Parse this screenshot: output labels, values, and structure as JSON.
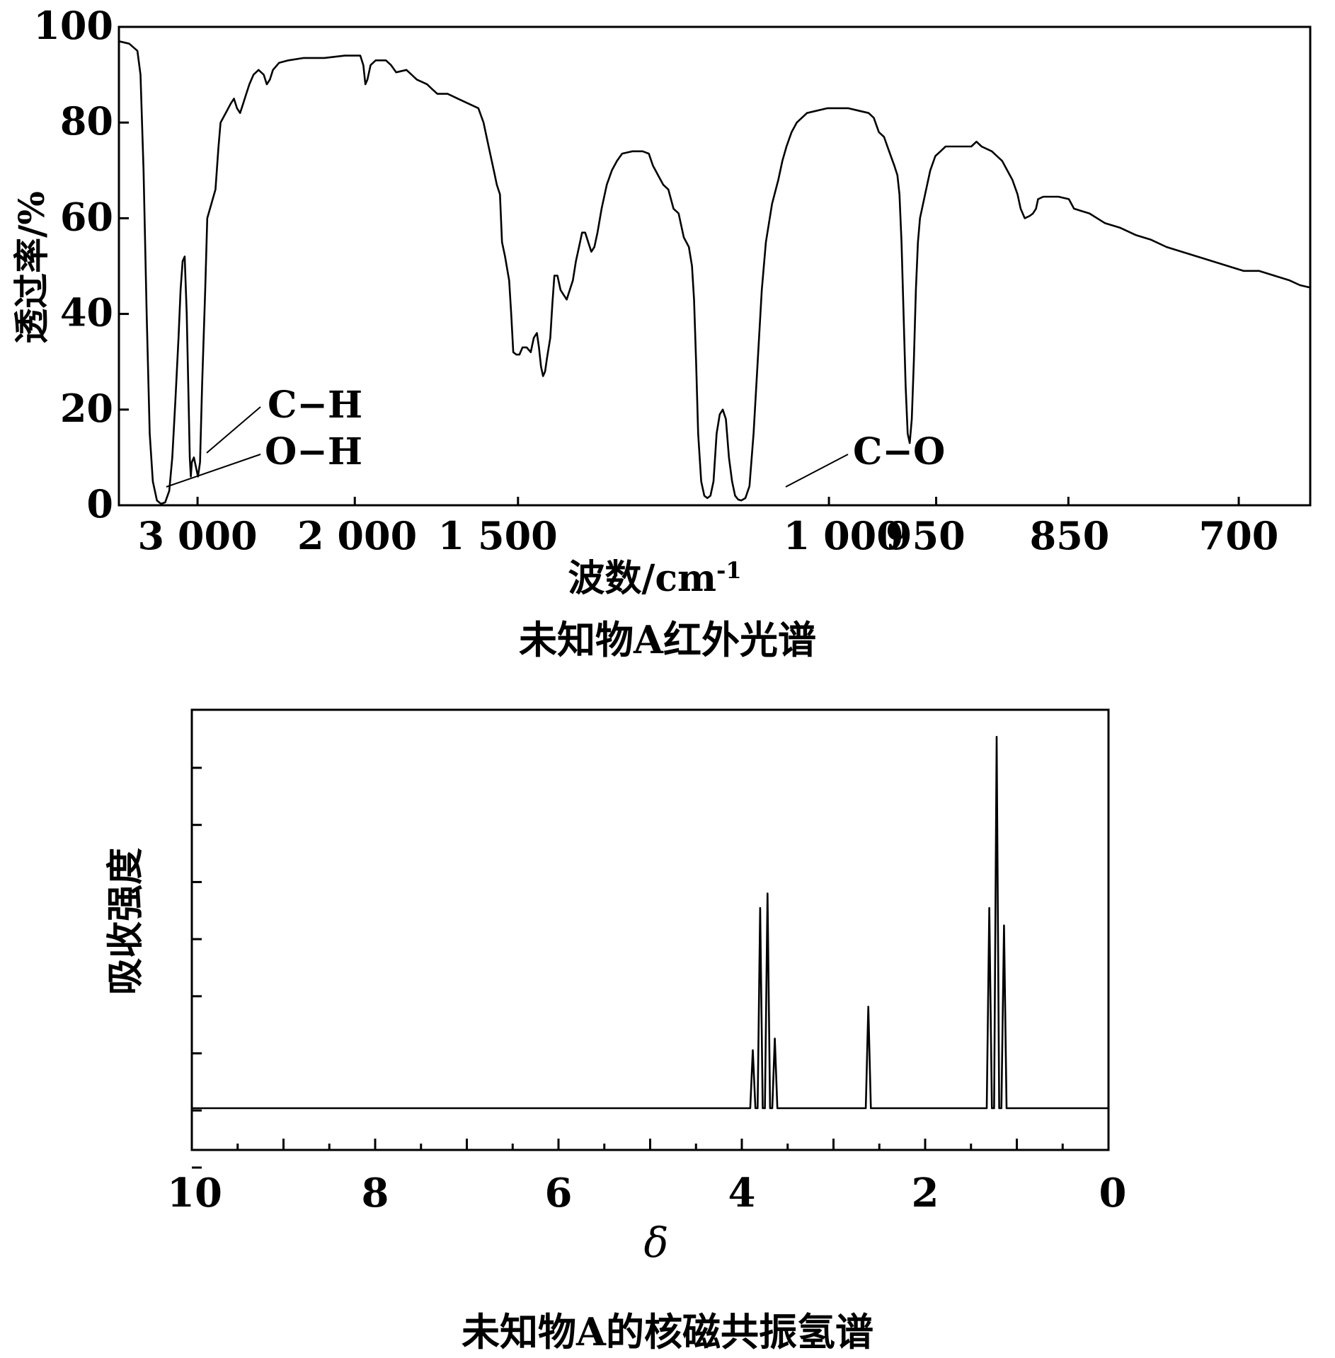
{
  "chart_data": [
    {
      "type": "line",
      "title": "未知物A红外光谱",
      "xlabel": "波数/cm",
      "xlabel_sup": "-1",
      "ylabel": "透过率/%",
      "x_reversed": true,
      "ylim": [
        0,
        100
      ],
      "y_ticks": [
        0,
        20,
        40,
        60,
        80,
        100
      ],
      "x_ticks": [
        "3 000",
        "2 000",
        "1 500",
        "1 000",
        "950",
        "850",
        "700"
      ],
      "annotations": [
        "C−H",
        "O−H",
        "C−O"
      ],
      "series": [
        {
          "points": [
            [
              0.0,
              97
            ],
            [
              0.01,
              96.5
            ],
            [
              0.018,
              95
            ],
            [
              0.021,
              90
            ],
            [
              0.024,
              70
            ],
            [
              0.027,
              40
            ],
            [
              0.03,
              15
            ],
            [
              0.033,
              5
            ],
            [
              0.037,
              1
            ],
            [
              0.041,
              0.3
            ],
            [
              0.045,
              0.6
            ],
            [
              0.049,
              3
            ],
            [
              0.052,
              10
            ],
            [
              0.055,
              22
            ],
            [
              0.058,
              35
            ],
            [
              0.06,
              45
            ],
            [
              0.062,
              51
            ],
            [
              0.064,
              52
            ],
            [
              0.066,
              40
            ],
            [
              0.068,
              20
            ],
            [
              0.069,
              10
            ],
            [
              0.07,
              6
            ],
            [
              0.071,
              9
            ],
            [
              0.073,
              10
            ],
            [
              0.075,
              8
            ],
            [
              0.077,
              6
            ],
            [
              0.079,
              9
            ],
            [
              0.081,
              25
            ],
            [
              0.084,
              45
            ],
            [
              0.086,
              60
            ],
            [
              0.09,
              63
            ],
            [
              0.094,
              66
            ],
            [
              0.097,
              75
            ],
            [
              0.099,
              80
            ],
            [
              0.104,
              82
            ],
            [
              0.109,
              84
            ],
            [
              0.112,
              85
            ],
            [
              0.115,
              83
            ],
            [
              0.118,
              82
            ],
            [
              0.121,
              84
            ],
            [
              0.124,
              86
            ],
            [
              0.127,
              88
            ],
            [
              0.131,
              90
            ],
            [
              0.136,
              91
            ],
            [
              0.141,
              90
            ],
            [
              0.144,
              88
            ],
            [
              0.147,
              89
            ],
            [
              0.15,
              91
            ],
            [
              0.156,
              92.5
            ],
            [
              0.165,
              93
            ],
            [
              0.18,
              93.5
            ],
            [
              0.2,
              93.5
            ],
            [
              0.22,
              94
            ],
            [
              0.235,
              94
            ],
            [
              0.238,
              92
            ],
            [
              0.24,
              88
            ],
            [
              0.242,
              89
            ],
            [
              0.245,
              92
            ],
            [
              0.25,
              93
            ],
            [
              0.26,
              93
            ],
            [
              0.265,
              92
            ],
            [
              0.27,
              90.5
            ],
            [
              0.28,
              91
            ],
            [
              0.285,
              90
            ],
            [
              0.29,
              89
            ],
            [
              0.3,
              88
            ],
            [
              0.305,
              87
            ],
            [
              0.31,
              86
            ],
            [
              0.32,
              86
            ],
            [
              0.33,
              85
            ],
            [
              0.34,
              84
            ],
            [
              0.35,
              83
            ],
            [
              0.355,
              80
            ],
            [
              0.36,
              75
            ],
            [
              0.365,
              70
            ],
            [
              0.368,
              67
            ],
            [
              0.371,
              65
            ],
            [
              0.373,
              55
            ],
            [
              0.376,
              52
            ],
            [
              0.38,
              47
            ],
            [
              0.382,
              40
            ],
            [
              0.384,
              32
            ],
            [
              0.387,
              31.5
            ],
            [
              0.39,
              31.5
            ],
            [
              0.393,
              33
            ],
            [
              0.397,
              33
            ],
            [
              0.401,
              32
            ],
            [
              0.404,
              35
            ],
            [
              0.407,
              36
            ],
            [
              0.409,
              33
            ],
            [
              0.411,
              29
            ],
            [
              0.413,
              27
            ],
            [
              0.415,
              28
            ],
            [
              0.417,
              31
            ],
            [
              0.42,
              35
            ],
            [
              0.422,
              42
            ],
            [
              0.424,
              48
            ],
            [
              0.427,
              48
            ],
            [
              0.43,
              45
            ],
            [
              0.433,
              44
            ],
            [
              0.436,
              43
            ],
            [
              0.439,
              45
            ],
            [
              0.442,
              47
            ],
            [
              0.445,
              51
            ],
            [
              0.448,
              54
            ],
            [
              0.451,
              57
            ],
            [
              0.454,
              57
            ],
            [
              0.457,
              55
            ],
            [
              0.46,
              53
            ],
            [
              0.463,
              54
            ],
            [
              0.466,
              57
            ],
            [
              0.47,
              62
            ],
            [
              0.475,
              67
            ],
            [
              0.48,
              70
            ],
            [
              0.485,
              72
            ],
            [
              0.49,
              73.5
            ],
            [
              0.5,
              74
            ],
            [
              0.51,
              74
            ],
            [
              0.516,
              73.5
            ],
            [
              0.52,
              71
            ],
            [
              0.525,
              69
            ],
            [
              0.53,
              67
            ],
            [
              0.535,
              66
            ],
            [
              0.54,
              62
            ],
            [
              0.545,
              61
            ],
            [
              0.55,
              56
            ],
            [
              0.555,
              54
            ],
            [
              0.558,
              50
            ],
            [
              0.56,
              43
            ],
            [
              0.562,
              30
            ],
            [
              0.564,
              15
            ],
            [
              0.567,
              5
            ],
            [
              0.57,
              2
            ],
            [
              0.573,
              1.5
            ],
            [
              0.576,
              2
            ],
            [
              0.579,
              5
            ],
            [
              0.582,
              15
            ],
            [
              0.585,
              19
            ],
            [
              0.588,
              20
            ],
            [
              0.591,
              18
            ],
            [
              0.594,
              10
            ],
            [
              0.597,
              5
            ],
            [
              0.6,
              2
            ],
            [
              0.603,
              1.2
            ],
            [
              0.606,
              1
            ],
            [
              0.61,
              1.5
            ],
            [
              0.614,
              4
            ],
            [
              0.618,
              15
            ],
            [
              0.622,
              30
            ],
            [
              0.626,
              45
            ],
            [
              0.63,
              55
            ],
            [
              0.636,
              63
            ],
            [
              0.642,
              68
            ],
            [
              0.646,
              72
            ],
            [
              0.65,
              75
            ],
            [
              0.655,
              78
            ],
            [
              0.66,
              80
            ],
            [
              0.67,
              82
            ],
            [
              0.69,
              83
            ],
            [
              0.71,
              83
            ],
            [
              0.72,
              82.5
            ],
            [
              0.73,
              82
            ],
            [
              0.735,
              81
            ],
            [
              0.74,
              78
            ],
            [
              0.745,
              77
            ],
            [
              0.75,
              74
            ],
            [
              0.755,
              71
            ],
            [
              0.758,
              69
            ],
            [
              0.76,
              65
            ],
            [
              0.762,
              55
            ],
            [
              0.764,
              40
            ],
            [
              0.766,
              25
            ],
            [
              0.768,
              15
            ],
            [
              0.77,
              13
            ],
            [
              0.772,
              18
            ],
            [
              0.774,
              30
            ],
            [
              0.776,
              45
            ],
            [
              0.778,
              55
            ],
            [
              0.78,
              60
            ],
            [
              0.785,
              65
            ],
            [
              0.79,
              70
            ],
            [
              0.795,
              73
            ],
            [
              0.8,
              74
            ],
            [
              0.805,
              75
            ],
            [
              0.82,
              75
            ],
            [
              0.83,
              75
            ],
            [
              0.835,
              76
            ],
            [
              0.84,
              75
            ],
            [
              0.85,
              74
            ],
            [
              0.86,
              72
            ],
            [
              0.865,
              70
            ],
            [
              0.87,
              68
            ],
            [
              0.875,
              65
            ],
            [
              0.878,
              62
            ],
            [
              0.882,
              60
            ],
            [
              0.887,
              60.5
            ],
            [
              0.89,
              61
            ],
            [
              0.893,
              62
            ],
            [
              0.895,
              64
            ],
            [
              0.9,
              64.5
            ],
            [
              0.915,
              64.5
            ],
            [
              0.925,
              64
            ],
            [
              0.93,
              62
            ],
            [
              0.945,
              61
            ],
            [
              0.96,
              59
            ],
            [
              0.975,
              58
            ],
            [
              0.99,
              56.5
            ],
            [
              1.005,
              55.5
            ],
            [
              1.02,
              54
            ],
            [
              1.035,
              53
            ],
            [
              1.05,
              52
            ],
            [
              1.065,
              51
            ],
            [
              1.08,
              50
            ],
            [
              1.095,
              49
            ],
            [
              1.11,
              49
            ],
            [
              1.125,
              48
            ],
            [
              1.14,
              47
            ],
            [
              1.15,
              46
            ],
            [
              1.16,
              45.5
            ]
          ]
        }
      ]
    },
    {
      "type": "line",
      "title": "未知物A的核磁共振氢谱",
      "xlabel": "δ",
      "ylabel": "吸收强度",
      "xlim": [
        10,
        0
      ],
      "x_reversed": true,
      "x_ticks": [
        10,
        8,
        6,
        4,
        2,
        0
      ],
      "peaks": [
        {
          "shift": 3.88,
          "height": 0.2
        },
        {
          "shift": 3.8,
          "height": 0.69
        },
        {
          "shift": 3.72,
          "height": 0.74
        },
        {
          "shift": 3.64,
          "height": 0.24
        },
        {
          "shift": 2.62,
          "height": 0.35
        },
        {
          "shift": 1.3,
          "height": 0.69
        },
        {
          "shift": 1.22,
          "height": 1.28
        },
        {
          "shift": 1.14,
          "height": 0.63
        }
      ]
    }
  ]
}
